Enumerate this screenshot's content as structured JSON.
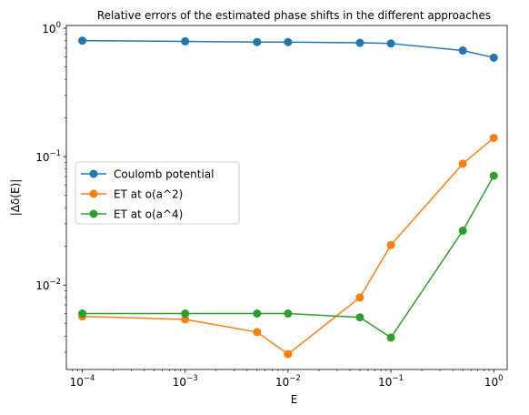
{
  "chart_data": {
    "type": "line",
    "title": "Relative errors of the estimated phase shifts in the different approaches",
    "xlabel": "E",
    "ylabel": "|Δδ(E)|",
    "xscale": "log",
    "yscale": "log",
    "xlim": [
      7e-05,
      1.35
    ],
    "ylim": [
      0.0022,
      1.05
    ],
    "x_ticks": [
      {
        "value": 0.0001,
        "base": "10",
        "exp": "−4"
      },
      {
        "value": 0.001,
        "base": "10",
        "exp": "−3"
      },
      {
        "value": 0.01,
        "base": "10",
        "exp": "−2"
      },
      {
        "value": 0.1,
        "base": "10",
        "exp": "−1"
      },
      {
        "value": 1,
        "base": "10",
        "exp": "0"
      }
    ],
    "y_ticks": [
      {
        "value": 0.01,
        "base": "10",
        "exp": "−2"
      },
      {
        "value": 0.1,
        "base": "10",
        "exp": "−1"
      },
      {
        "value": 1,
        "base": "10",
        "exp": "0"
      }
    ],
    "x": [
      0.0001,
      0.001,
      0.005,
      0.01,
      0.05,
      0.1,
      0.5,
      1
    ],
    "series": [
      {
        "name": "Coulomb potential",
        "color": "#1f77b4",
        "values": [
          0.8,
          0.79,
          0.78,
          0.78,
          0.77,
          0.76,
          0.67,
          0.59
        ]
      },
      {
        "name": "ET at o(a^2)",
        "color": "#ff7f0e",
        "values": [
          0.0057,
          0.0054,
          0.0043,
          0.0029,
          0.008,
          0.0205,
          0.088,
          0.14
        ]
      },
      {
        "name": "ET at o(a^4)",
        "color": "#2ca02c",
        "values": [
          0.006,
          0.006,
          0.006,
          0.006,
          0.0056,
          0.0039,
          0.0265,
          0.071
        ]
      }
    ],
    "legend": "center-left",
    "grid": false
  }
}
